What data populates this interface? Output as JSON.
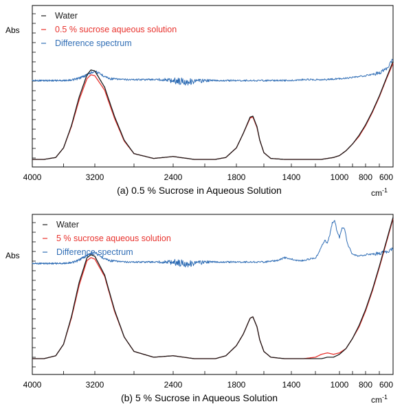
{
  "chart_data": [
    {
      "type": "line",
      "caption": "(a) 0.5 % Sucrose in Aqueous Solution",
      "ylabel": "Abs",
      "xunit": "cm",
      "xunit_sup": "-1",
      "x_ticks": [
        "4000",
        "3200",
        "2400",
        "1800",
        "1400",
        "1000",
        "800",
        "600"
      ],
      "legend": [
        {
          "label": "Water",
          "color": "#1a1a1a"
        },
        {
          "label": "0.5 % sucrose aqueous solution",
          "color": "#e8312c"
        },
        {
          "label": "Difference spectrum",
          "color": "#2f6db5"
        }
      ],
      "legend_placement": "top-left",
      "x_scale": "reversed",
      "y_ticks": "unlabeled",
      "series": [
        {
          "name": "Water",
          "color": "#1a1a1a",
          "x": [
            4000,
            3850,
            3700,
            3600,
            3500,
            3400,
            3300,
            3250,
            3200,
            3100,
            3000,
            2900,
            2800,
            2600,
            2400,
            2200,
            2100,
            2000,
            1900,
            1800,
            1750,
            1700,
            1680,
            1650,
            1630,
            1600,
            1550,
            1450,
            1400,
            1300,
            1200,
            1150,
            1100,
            1050,
            1000,
            950,
            900,
            850,
            800,
            750,
            700,
            650,
            600
          ],
          "y": [
            0.0,
            0.0,
            0.02,
            0.12,
            0.35,
            0.65,
            0.88,
            0.93,
            0.92,
            0.75,
            0.45,
            0.2,
            0.06,
            0.01,
            0.03,
            0.0,
            0.0,
            0.0,
            0.02,
            0.12,
            0.27,
            0.44,
            0.45,
            0.34,
            0.2,
            0.07,
            0.01,
            0.0,
            0.0,
            0.0,
            0.0,
            0.0,
            0.01,
            0.02,
            0.04,
            0.09,
            0.16,
            0.25,
            0.36,
            0.5,
            0.66,
            0.84,
            1.02
          ]
        },
        {
          "name": "0.5 % sucrose aqueous solution",
          "color": "#e8312c",
          "x": [
            4000,
            3850,
            3700,
            3600,
            3500,
            3400,
            3300,
            3250,
            3200,
            3100,
            3000,
            2900,
            2800,
            2600,
            2400,
            2200,
            2100,
            2000,
            1900,
            1800,
            1750,
            1700,
            1680,
            1650,
            1630,
            1600,
            1550,
            1450,
            1400,
            1300,
            1200,
            1150,
            1100,
            1050,
            1000,
            950,
            900,
            850,
            800,
            750,
            700,
            650,
            600
          ],
          "y": [
            0.0,
            0.0,
            0.02,
            0.12,
            0.34,
            0.62,
            0.84,
            0.88,
            0.87,
            0.72,
            0.43,
            0.19,
            0.06,
            0.01,
            0.03,
            0.0,
            0.0,
            0.0,
            0.02,
            0.12,
            0.27,
            0.43,
            0.44,
            0.33,
            0.2,
            0.07,
            0.01,
            0.0,
            0.0,
            0.0,
            0.0,
            0.0,
            0.01,
            0.02,
            0.04,
            0.09,
            0.16,
            0.24,
            0.35,
            0.49,
            0.65,
            0.83,
            1.0
          ]
        },
        {
          "name": "Difference spectrum",
          "color": "#2f6db5",
          "x": [
            4000,
            3800,
            3600,
            3450,
            3350,
            3250,
            3200,
            3150,
            3050,
            2900,
            2700,
            2500,
            2400,
            2300,
            2200,
            2100,
            2000,
            1900,
            1800,
            1700,
            1600,
            1500,
            1400,
            1300,
            1200,
            1100,
            1000,
            900,
            800,
            700,
            650,
            600
          ],
          "y": [
            0.82,
            0.82,
            0.82,
            0.83,
            0.86,
            0.9,
            0.92,
            0.89,
            0.84,
            0.83,
            0.83,
            0.83,
            0.82,
            0.81,
            0.81,
            0.82,
            0.82,
            0.82,
            0.82,
            0.82,
            0.82,
            0.82,
            0.82,
            0.83,
            0.83,
            0.83,
            0.84,
            0.85,
            0.87,
            0.9,
            0.94,
            1.04
          ]
        }
      ]
    },
    {
      "type": "line",
      "caption": "(b) 5 % Sucrose in Aqueous Solution",
      "ylabel": "Abs",
      "xunit": "cm",
      "xunit_sup": "-1",
      "x_ticks": [
        "4000",
        "3200",
        "2400",
        "1800",
        "1400",
        "1000",
        "800",
        "600"
      ],
      "legend": [
        {
          "label": "Water",
          "color": "#1a1a1a"
        },
        {
          "label": "5 % sucrose aqueous solution",
          "color": "#e8312c"
        },
        {
          "label": "Difference spectrum",
          "color": "#2f6db5"
        }
      ],
      "legend_placement": "top-left",
      "x_scale": "reversed",
      "y_ticks": "unlabeled",
      "series": [
        {
          "name": "Water",
          "color": "#1a1a1a",
          "x": [
            4000,
            3850,
            3700,
            3600,
            3500,
            3400,
            3300,
            3250,
            3200,
            3100,
            3000,
            2900,
            2800,
            2600,
            2400,
            2200,
            2100,
            2000,
            1900,
            1800,
            1750,
            1700,
            1680,
            1650,
            1630,
            1600,
            1550,
            1450,
            1400,
            1300,
            1200,
            1150,
            1100,
            1050,
            1000,
            950,
            900,
            850,
            800,
            750,
            700,
            650,
            600
          ],
          "y": [
            0.0,
            0.0,
            0.02,
            0.1,
            0.29,
            0.53,
            0.7,
            0.72,
            0.71,
            0.58,
            0.34,
            0.15,
            0.05,
            0.01,
            0.02,
            0.0,
            0.0,
            0.0,
            0.02,
            0.09,
            0.17,
            0.28,
            0.29,
            0.22,
            0.13,
            0.05,
            0.01,
            0.0,
            0.0,
            0.0,
            0.0,
            0.0,
            0.01,
            0.01,
            0.03,
            0.07,
            0.14,
            0.23,
            0.34,
            0.48,
            0.64,
            0.81,
            0.98
          ]
        },
        {
          "name": "5 % sucrose aqueous solution",
          "color": "#e8312c",
          "x": [
            4000,
            3850,
            3700,
            3600,
            3500,
            3400,
            3300,
            3250,
            3200,
            3100,
            3000,
            2900,
            2800,
            2600,
            2400,
            2200,
            2100,
            2000,
            1900,
            1800,
            1750,
            1700,
            1680,
            1650,
            1630,
            1600,
            1550,
            1450,
            1400,
            1300,
            1200,
            1150,
            1100,
            1050,
            1000,
            950,
            900,
            850,
            800,
            750,
            700,
            650,
            600
          ],
          "y": [
            0.0,
            0.0,
            0.02,
            0.1,
            0.28,
            0.51,
            0.68,
            0.7,
            0.69,
            0.57,
            0.33,
            0.15,
            0.05,
            0.01,
            0.02,
            0.0,
            0.0,
            0.0,
            0.02,
            0.09,
            0.17,
            0.28,
            0.29,
            0.22,
            0.13,
            0.05,
            0.01,
            0.0,
            0.0,
            0.0,
            0.01,
            0.03,
            0.04,
            0.03,
            0.04,
            0.07,
            0.14,
            0.22,
            0.33,
            0.47,
            0.63,
            0.8,
            0.97
          ]
        },
        {
          "name": "Difference spectrum",
          "color": "#2f6db5",
          "x": [
            4000,
            3800,
            3600,
            3450,
            3350,
            3250,
            3200,
            3150,
            3050,
            2900,
            2700,
            2500,
            2400,
            2300,
            2200,
            2100,
            2000,
            1900,
            1800,
            1700,
            1600,
            1500,
            1450,
            1400,
            1350,
            1300,
            1250,
            1200,
            1180,
            1150,
            1120,
            1100,
            1080,
            1060,
            1040,
            1020,
            1000,
            980,
            960,
            940,
            900,
            850,
            800,
            700,
            650,
            600
          ],
          "y": [
            0.66,
            0.66,
            0.66,
            0.67,
            0.7,
            0.73,
            0.74,
            0.71,
            0.68,
            0.67,
            0.67,
            0.67,
            0.67,
            0.66,
            0.66,
            0.67,
            0.67,
            0.67,
            0.67,
            0.67,
            0.67,
            0.68,
            0.7,
            0.69,
            0.68,
            0.68,
            0.69,
            0.7,
            0.72,
            0.78,
            0.82,
            0.8,
            0.86,
            0.94,
            0.96,
            0.88,
            0.84,
            0.91,
            0.9,
            0.8,
            0.72,
            0.71,
            0.72,
            0.73,
            0.74,
            0.76
          ]
        }
      ]
    }
  ]
}
